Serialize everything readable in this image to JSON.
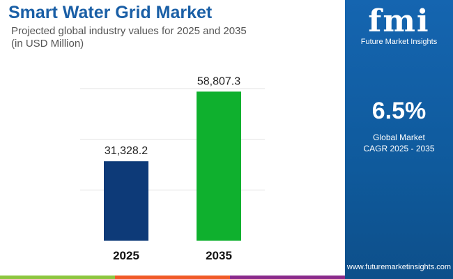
{
  "header": {
    "title": "Smart Water Grid Market",
    "subtitle_line1": "Projected global industry values for 2025 and 2035",
    "subtitle_line2": "(in USD Million)"
  },
  "panel": {
    "logo_text": "fmi",
    "logo_name": "Future Market Insights",
    "cagr": "6.5%",
    "cagr_label1": "Global Market",
    "cagr_label2": "CAGR 2025 - 2035",
    "url": "www.futuremarketinsights.com"
  },
  "colors": {
    "bar_2025": "#0d3a78",
    "bar_2035": "#0fb02e",
    "panel": "#1565b0",
    "title": "#1a5fa6",
    "strip": [
      "#8cc63f",
      "#f05a28",
      "#8a2a8b"
    ]
  },
  "chart_data": {
    "type": "bar",
    "categories": [
      "2025",
      "2035"
    ],
    "values": [
      31328.2,
      58807.3
    ],
    "value_labels": [
      "31,328.2",
      "58,807.3"
    ],
    "ylim": [
      0,
      60000
    ],
    "grid": true,
    "gridlines": [
      20000,
      40000,
      60000
    ]
  }
}
